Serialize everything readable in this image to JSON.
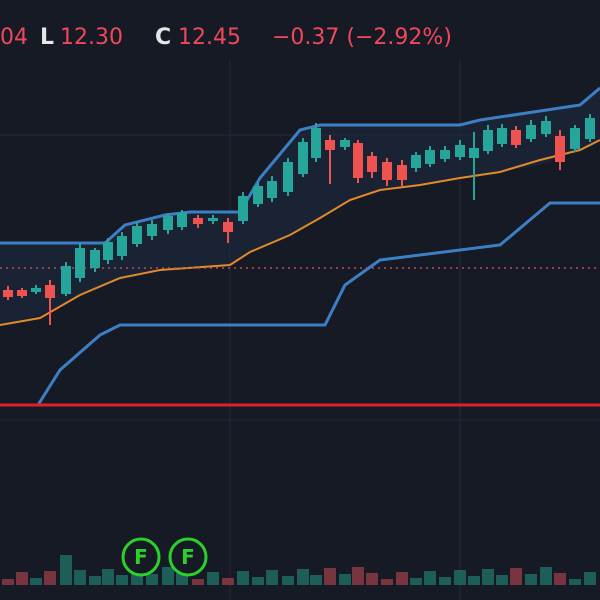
{
  "header": {
    "open_tail": "04",
    "low_label": "L",
    "low": "12.30",
    "close_label": "C",
    "close": "12.45",
    "change": "−0.37 (−2.92%)"
  },
  "markers": [
    "F",
    "F"
  ]
}
